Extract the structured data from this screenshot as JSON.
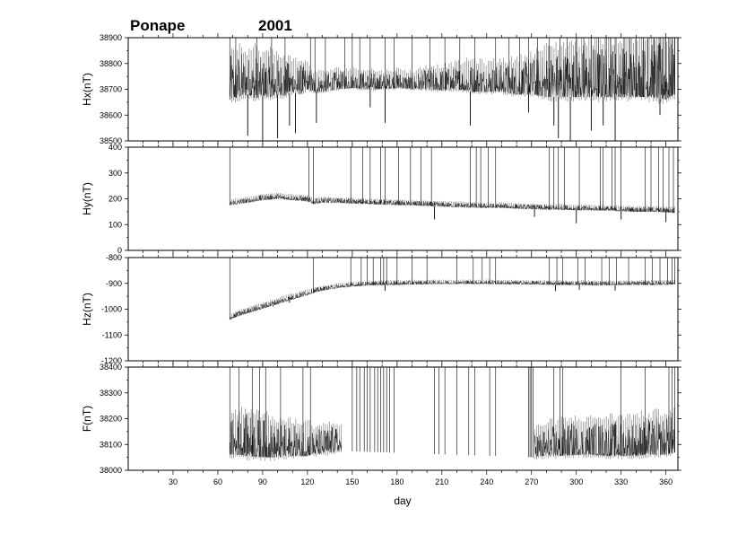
{
  "chart_data": {
    "type": "line",
    "title": "Ponape",
    "year": "2001",
    "xlabel": "day",
    "xlim": [
      0,
      368
    ],
    "xticks": [
      30,
      60,
      90,
      120,
      150,
      180,
      210,
      240,
      270,
      300,
      330,
      360
    ],
    "grid": false,
    "legend": "none",
    "line_color": "#000000",
    "panels": [
      {
        "name": "Hx",
        "ylabel": "Hx(nT)",
        "ylim": [
          38500,
          38900
        ],
        "yticks": [
          38500,
          38600,
          38700,
          38800,
          38900
        ],
        "data_start_day": 68,
        "series_x": [
          68,
          75,
          80,
          85,
          90,
          95,
          100,
          105,
          110,
          115,
          120,
          124,
          130,
          140,
          150,
          160,
          170,
          180,
          190,
          200,
          210,
          220,
          230,
          240,
          250,
          260,
          270,
          280,
          290,
          300,
          310,
          320,
          330,
          340,
          350,
          360,
          366
        ],
        "baseline": [
          38660,
          38670,
          38680,
          38665,
          38675,
          38670,
          38680,
          38675,
          38690,
          38680,
          38700,
          38690,
          38690,
          38700,
          38705,
          38700,
          38700,
          38705,
          38700,
          38700,
          38695,
          38700,
          38690,
          38690,
          38690,
          38680,
          38680,
          38670,
          38670,
          38670,
          38670,
          38670,
          38670,
          38670,
          38670,
          38660,
          38680
        ],
        "range_top": [
          38830,
          38850,
          38830,
          38840,
          38820,
          38830,
          38820,
          38810,
          38800,
          38800,
          38790,
          38760,
          38760,
          38770,
          38770,
          38770,
          38760,
          38770,
          38760,
          38780,
          38780,
          38790,
          38800,
          38790,
          38800,
          38800,
          38820,
          38840,
          38850,
          38860,
          38870,
          38870,
          38870,
          38870,
          38880,
          38880,
          38880
        ],
        "dips": [
          [
            80,
            38520
          ],
          [
            90,
            38500
          ],
          [
            100,
            38510
          ],
          [
            108,
            38560
          ],
          [
            112,
            38530
          ],
          [
            126,
            38570
          ],
          [
            162,
            38630
          ],
          [
            172,
            38570
          ],
          [
            229,
            38560
          ],
          [
            268,
            38610
          ],
          [
            285,
            38560
          ],
          [
            288,
            38510
          ],
          [
            296,
            38500
          ],
          [
            310,
            38540
          ],
          [
            318,
            38560
          ],
          [
            326,
            38500
          ],
          [
            356,
            38600
          ]
        ],
        "spikes_to_top": [
          68,
          72,
          86,
          96,
          105,
          122,
          125,
          132,
          145,
          150,
          155,
          162,
          172,
          178,
          190,
          202,
          212,
          222,
          232,
          246,
          255,
          262,
          268,
          274,
          282,
          289,
          294,
          300,
          305,
          310,
          315,
          320,
          323,
          326,
          332,
          336,
          340,
          345,
          348,
          352,
          356,
          358,
          360,
          362,
          364,
          366
        ]
      },
      {
        "name": "Hy",
        "ylabel": "Hy(nT)",
        "ylim": [
          0,
          400
        ],
        "yticks": [
          0,
          100,
          200,
          300,
          400
        ],
        "data_start_day": 68,
        "series_x": [
          68,
          80,
          90,
          100,
          110,
          120,
          124,
          130,
          140,
          150,
          160,
          170,
          180,
          190,
          200,
          210,
          220,
          230,
          240,
          250,
          260,
          270,
          280,
          290,
          300,
          310,
          320,
          330,
          340,
          350,
          360,
          366
        ],
        "baseline": [
          175,
          185,
          195,
          200,
          195,
          190,
          180,
          185,
          185,
          182,
          180,
          178,
          176,
          175,
          172,
          170,
          168,
          166,
          165,
          165,
          162,
          160,
          158,
          158,
          156,
          155,
          155,
          152,
          150,
          150,
          148,
          145
        ],
        "range_top": [
          195,
          205,
          215,
          220,
          215,
          210,
          200,
          205,
          203,
          200,
          198,
          196,
          194,
          192,
          190,
          188,
          186,
          184,
          182,
          182,
          180,
          178,
          176,
          176,
          174,
          173,
          172,
          170,
          168,
          168,
          166,
          165
        ],
        "dips": [
          [
            205,
            120
          ],
          [
            272,
            130
          ],
          [
            300,
            105
          ],
          [
            330,
            120
          ],
          [
            360,
            110
          ]
        ],
        "spikes_to_top": [
          68,
          121,
          124,
          149,
          157,
          162,
          169,
          172,
          181,
          189,
          196,
          203,
          229,
          233,
          236,
          241,
          246,
          282,
          285,
          288,
          292,
          302,
          316,
          318,
          324,
          326,
          330,
          346,
          350,
          355,
          358,
          362,
          365
        ]
      },
      {
        "name": "Hz",
        "ylabel": "Hz(nT)",
        "ylim": [
          -1200,
          -800
        ],
        "yticks": [
          -1200,
          -1100,
          -1000,
          -900,
          -800
        ],
        "data_start_day": 68,
        "series_x": [
          68,
          75,
          80,
          90,
          100,
          110,
          120,
          125,
          130,
          140,
          150,
          160,
          170,
          180,
          190,
          200,
          210,
          220,
          230,
          240,
          250,
          260,
          270,
          280,
          290,
          300,
          310,
          320,
          330,
          340,
          350,
          360,
          366
        ],
        "baseline": [
          -1040,
          -1025,
          -1015,
          -998,
          -980,
          -962,
          -945,
          -935,
          -928,
          -918,
          -912,
          -908,
          -906,
          -906,
          -904,
          -903,
          -902,
          -902,
          -902,
          -902,
          -903,
          -904,
          -904,
          -905,
          -906,
          -906,
          -907,
          -907,
          -906,
          -906,
          -906,
          -905,
          -903
        ],
        "range_top": [
          -1020,
          -1005,
          -995,
          -978,
          -960,
          -942,
          -926,
          -918,
          -912,
          -902,
          -897,
          -893,
          -891,
          -890,
          -889,
          -889,
          -888,
          -888,
          -888,
          -888,
          -889,
          -890,
          -890,
          -890,
          -891,
          -891,
          -892,
          -892,
          -892,
          -891,
          -890,
          -890,
          -888
        ],
        "dips": [
          [
            97,
            -990
          ],
          [
            108,
            -975
          ],
          [
            172,
            -928
          ],
          [
            286,
            -930
          ],
          [
            302,
            -925
          ],
          [
            326,
            -928
          ]
        ],
        "spikes_to_top": [
          68,
          124,
          149,
          156,
          160,
          164,
          169,
          171,
          173,
          180,
          190,
          200,
          220,
          231,
          237,
          242,
          246,
          282,
          287,
          291,
          301,
          306,
          317,
          322,
          327,
          335,
          346,
          351,
          356,
          361,
          364,
          366
        ]
      },
      {
        "name": "F",
        "ylabel": "F(nT)",
        "ylim": [
          38000,
          38400
        ],
        "yticks": [
          38000,
          38100,
          38200,
          38300,
          38400
        ],
        "data_ranges": [
          [
            68,
            122
          ],
          [
            123,
            143
          ],
          [
            272,
            366
          ]
        ],
        "series_x": [
          68,
          75,
          80,
          90,
          100,
          110,
          120,
          122,
          123,
          130,
          137,
          143,
          272,
          280,
          290,
          300,
          310,
          320,
          330,
          340,
          350,
          360,
          366
        ],
        "baseline": [
          38060,
          38060,
          38055,
          38050,
          38050,
          38055,
          38055,
          38060,
          38060,
          38065,
          38070,
          38075,
          38050,
          38055,
          38055,
          38060,
          38060,
          38055,
          38055,
          38055,
          38060,
          38060,
          38070
        ],
        "range_top": [
          38200,
          38210,
          38220,
          38200,
          38180,
          38175,
          38170,
          38170,
          38160,
          38165,
          38170,
          38160,
          38150,
          38170,
          38180,
          38185,
          38185,
          38190,
          38190,
          38195,
          38200,
          38210,
          38210
        ],
        "spikes_to_top": [
          68,
          74,
          83,
          88,
          92,
          102,
          117,
          122,
          150,
          153,
          155,
          158,
          160,
          162,
          165,
          167,
          169,
          171,
          173,
          175,
          178,
          205,
          208,
          212,
          220,
          228,
          232,
          242,
          246,
          268,
          269,
          270,
          271,
          285,
          289,
          291,
          330,
          346,
          362,
          364,
          366
        ]
      }
    ]
  }
}
